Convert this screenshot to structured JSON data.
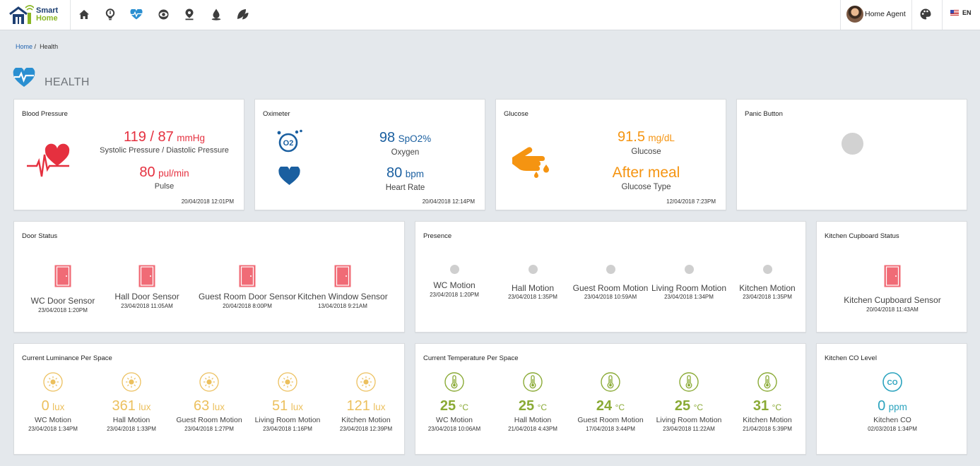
{
  "app": {
    "logo_line1": "Smart",
    "logo_line2": "Home",
    "nav_icons": [
      "home-icon",
      "lightbulb-icon",
      "health-icon",
      "eye-icon",
      "location-pin-icon",
      "water-drop-icon",
      "leaf-icon"
    ],
    "user_name": "Home Agent",
    "language": "EN"
  },
  "breadcrumb": {
    "home": "Home",
    "separator": "/",
    "current": "Health"
  },
  "page_title": "HEALTH",
  "colors": {
    "red": "#e5303f",
    "blue": "#1a5fa0",
    "orange": "#f59411",
    "gold": "#ecc05e",
    "green": "#8aaa35",
    "teal": "#2ba3be"
  },
  "blood_pressure": {
    "title": "Blood Pressure",
    "pressure_value": "119 / 87",
    "pressure_unit": "mmHg",
    "pressure_label": "Systolic Pressure / Diastolic Pressure",
    "pulse_value": "80",
    "pulse_unit": "pul/min",
    "pulse_label": "Pulse",
    "timestamp": "20/04/2018 12:01PM"
  },
  "oximeter": {
    "title": "Oximeter",
    "oxygen_value": "98",
    "oxygen_unit": "SpO2%",
    "oxygen_label": "Oxygen",
    "rate_value": "80",
    "rate_unit": "bpm",
    "rate_label": "Heart Rate",
    "timestamp": "20/04/2018 12:14PM"
  },
  "glucose": {
    "title": "Glucose",
    "value": "91.5",
    "unit": "mg/dL",
    "label": "Glucose",
    "type_value": "After meal",
    "type_label": "Glucose Type",
    "timestamp": "12/04/2018 7:23PM"
  },
  "panic": {
    "title": "Panic Button"
  },
  "door_status": {
    "title": "Door Status",
    "items": [
      {
        "name": "WC Door Sensor",
        "time": "23/04/2018 1:20PM"
      },
      {
        "name": "Hall Door Sensor",
        "time": "23/04/2018 11:05AM"
      },
      {
        "name": "Guest Room Door Sensor",
        "time": "20/04/2018 8:00PM"
      },
      {
        "name": "Kitchen Window Sensor",
        "time": "13/04/2018 9:21AM"
      }
    ]
  },
  "presence": {
    "title": "Presence",
    "items": [
      {
        "name": "WC Motion",
        "time": "23/04/2018 1:20PM"
      },
      {
        "name": "Hall Motion",
        "time": "23/04/2018 1:35PM"
      },
      {
        "name": "Guest Room Motion",
        "time": "23/04/2018 10:59AM"
      },
      {
        "name": "Living Room Motion",
        "time": "23/04/2018 1:34PM"
      },
      {
        "name": "Kitchen Motion",
        "time": "23/04/2018 1:35PM"
      }
    ]
  },
  "cupboard": {
    "title": "Kitchen Cupboard Status",
    "name": "Kitchen Cupboard Sensor",
    "time": "20/04/2018 11:43AM"
  },
  "luminance": {
    "title": "Current Luminance Per Space",
    "unit": "lux",
    "items": [
      {
        "value": "0",
        "name": "WC Motion",
        "time": "23/04/2018 1:34PM"
      },
      {
        "value": "361",
        "name": "Hall Motion",
        "time": "23/04/2018 1:33PM"
      },
      {
        "value": "63",
        "name": "Guest Room Motion",
        "time": "23/04/2018 1:27PM"
      },
      {
        "value": "51",
        "name": "Living Room Motion",
        "time": "23/04/2018 1:16PM"
      },
      {
        "value": "121",
        "name": "Kitchen Motion",
        "time": "23/04/2018 12:39PM"
      }
    ]
  },
  "temperature": {
    "title": "Current Temperature Per Space",
    "unit": "°C",
    "items": [
      {
        "value": "25",
        "name": "WC Motion",
        "time": "23/04/2018 10:06AM"
      },
      {
        "value": "25",
        "name": "Hall Motion",
        "time": "21/04/2018 4:43PM"
      },
      {
        "value": "24",
        "name": "Guest Room Motion",
        "time": "17/04/2018 3:44PM"
      },
      {
        "value": "25",
        "name": "Living Room Motion",
        "time": "23/04/2018 11:22AM"
      },
      {
        "value": "31",
        "name": "Kitchen Motion",
        "time": "21/04/2018 5:39PM"
      }
    ]
  },
  "co_level": {
    "title": "Kitchen CO Level",
    "icon_text": "CO",
    "value": "0",
    "unit": "ppm",
    "label": "Kitchen CO",
    "time": "02/03/2018 1:34PM"
  }
}
